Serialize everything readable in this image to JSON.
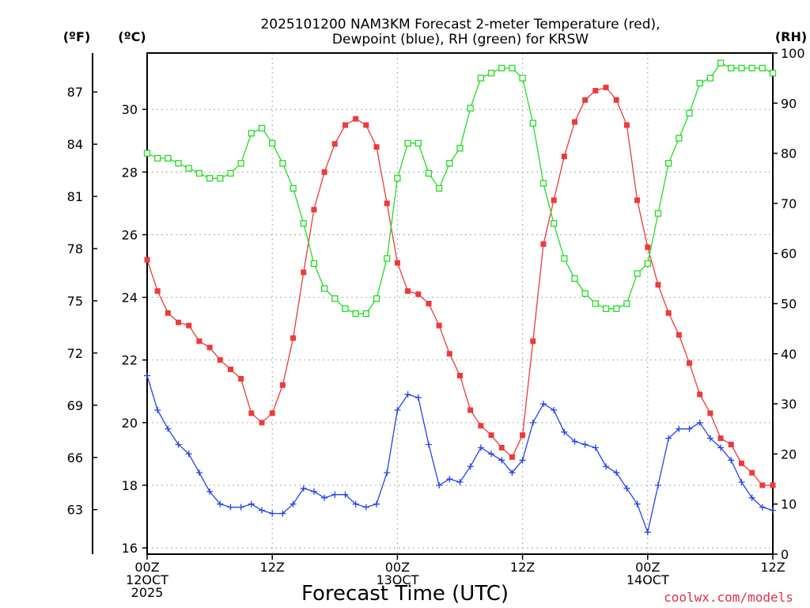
{
  "chart_data": {
    "type": "line",
    "title": {
      "line1": "2025101200 NAM3KM Forecast 2-meter Temperature (red),",
      "line2": "Dewpoint (blue), RH (green) for KRSW"
    },
    "xlabel": "Forecast Time (UTC)",
    "credit": "coolwx.com/models",
    "units": {
      "fahrenheit": "(ºF)",
      "celsius": "(ºC)",
      "rh": "(RH)"
    },
    "x_hours_range": [
      0,
      60
    ],
    "x_ticks": [
      {
        "hour": 0,
        "lines": [
          "00Z",
          "12OCT",
          "2025"
        ]
      },
      {
        "hour": 12,
        "lines": [
          "12Z"
        ]
      },
      {
        "hour": 24,
        "lines": [
          "00Z",
          "13OCT"
        ]
      },
      {
        "hour": 36,
        "lines": [
          "12Z"
        ]
      },
      {
        "hour": 48,
        "lines": [
          "00Z",
          "14OCT"
        ]
      },
      {
        "hour": 60,
        "lines": [
          "12Z"
        ]
      }
    ],
    "celsius_range": [
      15.8,
      31.8
    ],
    "celsius_ticks": [
      16,
      18,
      20,
      22,
      24,
      26,
      28,
      30
    ],
    "fahrenheit_ticks": [
      63,
      66,
      69,
      72,
      75,
      78,
      81,
      84,
      87
    ],
    "rh_range": [
      0,
      100
    ],
    "rh_ticks": [
      0,
      10,
      20,
      30,
      40,
      50,
      60,
      70,
      80,
      90,
      100
    ],
    "x_hours": [
      0,
      1,
      2,
      3,
      4,
      5,
      6,
      7,
      8,
      9,
      10,
      11,
      12,
      13,
      14,
      15,
      16,
      17,
      18,
      19,
      20,
      21,
      22,
      23,
      24,
      25,
      26,
      27,
      28,
      29,
      30,
      31,
      32,
      33,
      34,
      35,
      36,
      37,
      38,
      39,
      40,
      41,
      42,
      43,
      44,
      45,
      46,
      47,
      48,
      49,
      50,
      51,
      52,
      53,
      54,
      55,
      56,
      57,
      58,
      59,
      60
    ],
    "series": [
      {
        "name": "Temperature",
        "unit": "C",
        "color": "#ee3a3a",
        "marker": "filled-square",
        "values": [
          25.2,
          24.2,
          23.5,
          23.2,
          23.1,
          22.6,
          22.4,
          22.0,
          21.7,
          21.4,
          20.3,
          20.0,
          20.3,
          21.2,
          22.7,
          24.8,
          26.8,
          28.0,
          28.9,
          29.5,
          29.7,
          29.5,
          28.8,
          27.0,
          25.1,
          24.2,
          24.1,
          23.8,
          23.1,
          22.2,
          21.5,
          20.4,
          19.9,
          19.6,
          19.2,
          18.9,
          19.6,
          22.6,
          25.7,
          27.1,
          28.5,
          29.6,
          30.3,
          30.6,
          30.7,
          30.3,
          29.5,
          27.1,
          25.6,
          24.4,
          23.5,
          22.8,
          21.9,
          20.9,
          20.3,
          19.5,
          19.3,
          18.7,
          18.4,
          18.0,
          18.0
        ]
      },
      {
        "name": "Dewpoint",
        "unit": "C",
        "color": "#2244ee",
        "marker": "plus",
        "values": [
          21.5,
          20.4,
          19.8,
          19.3,
          19.0,
          18.4,
          17.8,
          17.4,
          17.3,
          17.3,
          17.4,
          17.2,
          17.1,
          17.1,
          17.4,
          17.9,
          17.8,
          17.6,
          17.7,
          17.7,
          17.4,
          17.3,
          17.4,
          18.4,
          20.4,
          20.9,
          20.8,
          19.3,
          18.0,
          18.2,
          18.1,
          18.6,
          19.2,
          19.0,
          18.8,
          18.4,
          18.8,
          20.0,
          20.6,
          20.4,
          19.7,
          19.4,
          19.3,
          19.2,
          18.6,
          18.4,
          17.9,
          17.4,
          16.5,
          18.0,
          19.5,
          19.8,
          19.8,
          20.0,
          19.5,
          19.2,
          18.8,
          18.1,
          17.6,
          17.3,
          17.2
        ]
      },
      {
        "name": "RH",
        "unit": "%",
        "color": "#22dd22",
        "marker": "open-square",
        "values": [
          80,
          79,
          79,
          78,
          77,
          76,
          75,
          75,
          76,
          78,
          84,
          85,
          82,
          78,
          73,
          66,
          58,
          53,
          51,
          49,
          48,
          48,
          51,
          59,
          75,
          82,
          82,
          76,
          73,
          78,
          81,
          89,
          95,
          96,
          97,
          97,
          95,
          86,
          74,
          66,
          59,
          55,
          52,
          50,
          49,
          49,
          50,
          56,
          58,
          68,
          78,
          83,
          88,
          94,
          95,
          98,
          97,
          97,
          97,
          97,
          96
        ]
      }
    ]
  }
}
